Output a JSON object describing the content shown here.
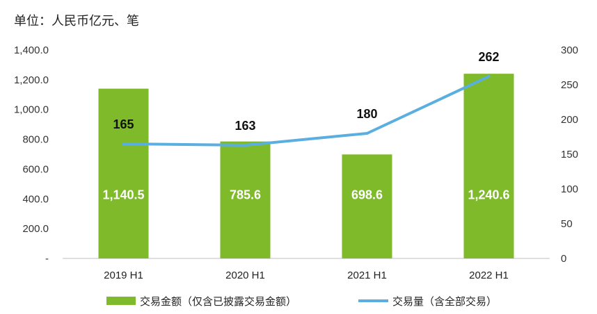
{
  "unit_label": "单位：人民币亿元、笔",
  "colors": {
    "bar": "#7fba2b",
    "line": "#5aaee0"
  },
  "chart_data": {
    "type": "bar",
    "categories": [
      "2019 H1",
      "2020 H1",
      "2021 H1",
      "2022 H1"
    ],
    "series": [
      {
        "name": "交易金额（仅含已披露交易金额）",
        "type": "bar",
        "axis": "left",
        "values": [
          1140.5,
          785.6,
          698.6,
          1240.6
        ],
        "labels": [
          "1,140.5",
          "785.6",
          "698.6",
          "1,240.6"
        ]
      },
      {
        "name": "交易量（含全部交易）",
        "type": "line",
        "axis": "right",
        "values": [
          165,
          163,
          180,
          262
        ],
        "labels": [
          "165",
          "163",
          "180",
          "262"
        ]
      }
    ],
    "y_left": {
      "range": [
        0,
        1400
      ],
      "ticks": [
        "-",
        "200.0",
        "400.0",
        "600.0",
        "800.0",
        "1,000.0",
        "1,200.0",
        "1,400.0"
      ]
    },
    "y_right": {
      "range": [
        0,
        300
      ],
      "ticks": [
        "0",
        "50",
        "100",
        "150",
        "200",
        "250",
        "300"
      ]
    },
    "legend": {
      "position": "bottom"
    },
    "grid": false
  }
}
